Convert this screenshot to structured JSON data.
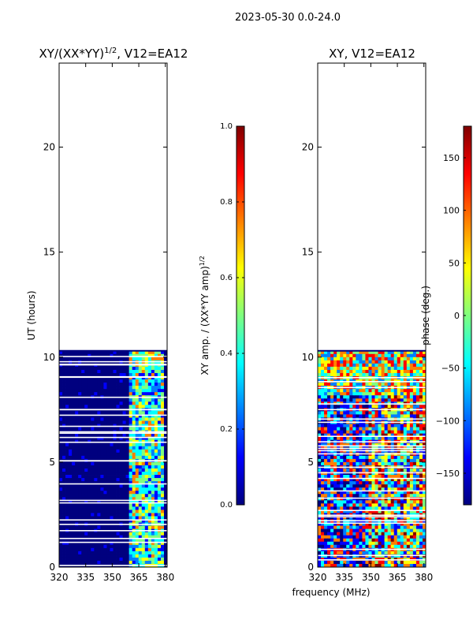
{
  "figure_title": "2023-05-30 0.0-24.0",
  "shared_xlabel": "frequency (MHz)",
  "chart_data": [
    {
      "type": "heatmap",
      "title_main": "XY/(XX*YY)",
      "title_sup": "1/2",
      "title_suffix": ", V12=EA12",
      "ylabel": "UT (hours)",
      "xlim": [
        320,
        381
      ],
      "ylim": [
        0,
        24
      ],
      "xticks": [
        320,
        335,
        350,
        365,
        380
      ],
      "yticks": [
        0,
        5,
        10,
        15,
        20
      ],
      "data_extent_hours": [
        0,
        10.3
      ],
      "variant": "amplitude",
      "colorbar": {
        "label_main": "XY amp. / (XX*YY amp)",
        "label_sup": "1/2",
        "range": [
          0.0,
          1.0
        ],
        "ticks": [
          "0.0",
          "0.2",
          "0.4",
          "0.6",
          "0.8",
          "1.0"
        ]
      }
    },
    {
      "type": "heatmap",
      "title": "XY, V12=EA12",
      "xlim": [
        320,
        381
      ],
      "ylim": [
        0,
        24
      ],
      "xticks": [
        320,
        335,
        350,
        365,
        380
      ],
      "yticks": [
        0,
        5,
        10,
        15,
        20
      ],
      "data_extent_hours": [
        0,
        10.3
      ],
      "variant": "phase",
      "colorbar": {
        "label": "phase (deg.)",
        "range": [
          -180,
          180
        ],
        "ticks": [
          "150",
          "100",
          "50",
          "0",
          "−50",
          "−100",
          "−150"
        ]
      }
    }
  ],
  "colors": {
    "jet": [
      "#00007f",
      "#0000ff",
      "#007fff",
      "#00ffff",
      "#7fff7f",
      "#ffff00",
      "#ff7f00",
      "#ff0000",
      "#7f0000"
    ]
  }
}
